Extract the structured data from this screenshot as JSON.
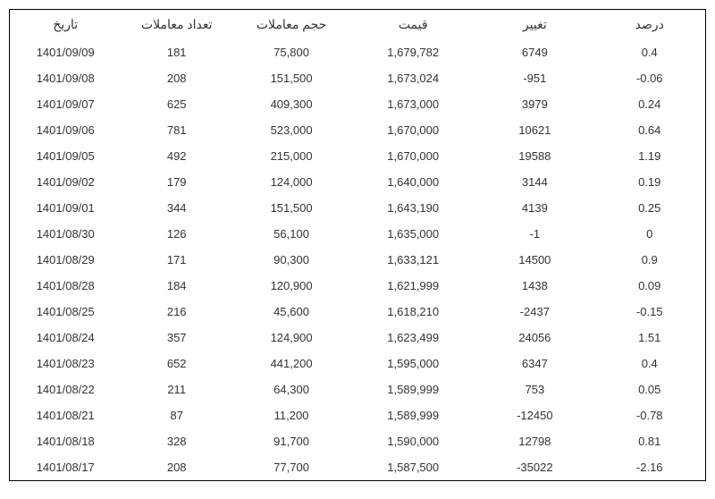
{
  "table": {
    "columns": [
      {
        "key": "date",
        "label": "تاریخ",
        "class": "col-date"
      },
      {
        "key": "trades",
        "label": "تعداد معاملات",
        "class": "col-trades"
      },
      {
        "key": "volume",
        "label": "حجم معاملات",
        "class": "col-volume"
      },
      {
        "key": "price",
        "label": "قیمت",
        "class": "col-price"
      },
      {
        "key": "change",
        "label": "تغییر",
        "class": "col-change"
      },
      {
        "key": "percent",
        "label": "درصد",
        "class": "col-percent"
      }
    ],
    "rows": [
      {
        "date": "1401/09/09",
        "trades": "181",
        "volume": "75,800",
        "price": "1,679,782",
        "change": "6749",
        "percent": "0.4"
      },
      {
        "date": "1401/09/08",
        "trades": "208",
        "volume": "151,500",
        "price": "1,673,024",
        "change": "-951",
        "percent": "-0.06"
      },
      {
        "date": "1401/09/07",
        "trades": "625",
        "volume": "409,300",
        "price": "1,673,000",
        "change": "3979",
        "percent": "0.24"
      },
      {
        "date": "1401/09/06",
        "trades": "781",
        "volume": "523,000",
        "price": "1,670,000",
        "change": "10621",
        "percent": "0.64"
      },
      {
        "date": "1401/09/05",
        "trades": "492",
        "volume": "215,000",
        "price": "1,670,000",
        "change": "19588",
        "percent": "1.19"
      },
      {
        "date": "1401/09/02",
        "trades": "179",
        "volume": "124,000",
        "price": "1,640,000",
        "change": "3144",
        "percent": "0.19"
      },
      {
        "date": "1401/09/01",
        "trades": "344",
        "volume": "151,500",
        "price": "1,643,190",
        "change": "4139",
        "percent": "0.25"
      },
      {
        "date": "1401/08/30",
        "trades": "126",
        "volume": "56,100",
        "price": "1,635,000",
        "change": "-1",
        "percent": "0"
      },
      {
        "date": "1401/08/29",
        "trades": "171",
        "volume": "90,300",
        "price": "1,633,121",
        "change": "14500",
        "percent": "0.9"
      },
      {
        "date": "1401/08/28",
        "trades": "184",
        "volume": "120,900",
        "price": "1,621,999",
        "change": "1438",
        "percent": "0.09"
      },
      {
        "date": "1401/08/25",
        "trades": "216",
        "volume": "45,600",
        "price": "1,618,210",
        "change": "-2437",
        "percent": "-0.15"
      },
      {
        "date": "1401/08/24",
        "trades": "357",
        "volume": "124,900",
        "price": "1,623,499",
        "change": "24056",
        "percent": "1.51"
      },
      {
        "date": "1401/08/23",
        "trades": "652",
        "volume": "441,200",
        "price": "1,595,000",
        "change": "6347",
        "percent": "0.4"
      },
      {
        "date": "1401/08/22",
        "trades": "211",
        "volume": "64,300",
        "price": "1,589,999",
        "change": "753",
        "percent": "0.05"
      },
      {
        "date": "1401/08/21",
        "trades": "87",
        "volume": "11,200",
        "price": "1,589,999",
        "change": "-12450",
        "percent": "-0.78"
      },
      {
        "date": "1401/08/18",
        "trades": "328",
        "volume": "91,700",
        "price": "1,590,000",
        "change": "12798",
        "percent": "0.81"
      },
      {
        "date": "1401/08/17",
        "trades": "208",
        "volume": "77,700",
        "price": "1,587,500",
        "change": "-35022",
        "percent": "-2.16"
      }
    ]
  },
  "styling": {
    "border_color": "#000000",
    "text_color": "#333333",
    "background_color": "#ffffff",
    "header_fontsize": 14,
    "cell_fontsize": 13,
    "font_family": "Tahoma"
  }
}
